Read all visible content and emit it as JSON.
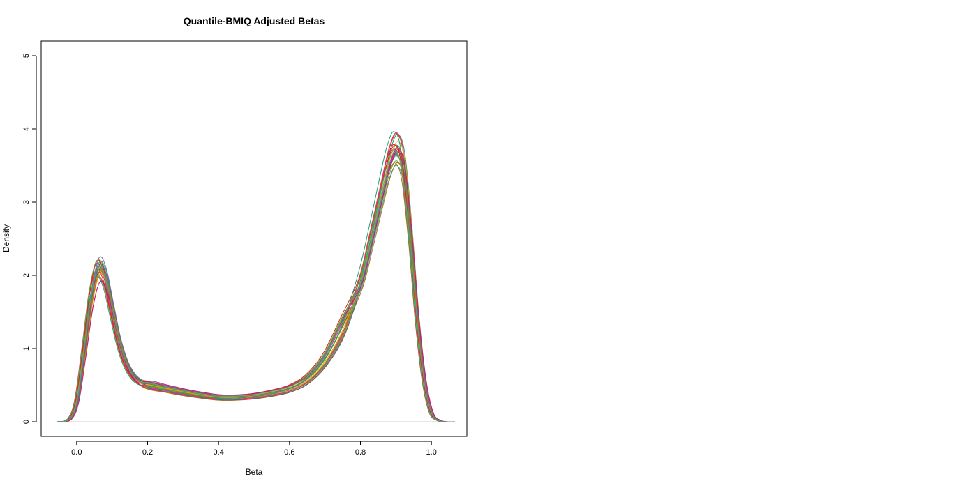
{
  "chart_data": {
    "type": "line",
    "title": "Quantile-BMIQ Adjusted Betas",
    "xlabel": "Beta",
    "ylabel": "Density",
    "xlim": [
      -0.1,
      1.1
    ],
    "ylim": [
      -0.2,
      5.2
    ],
    "x_ticks": [
      0.0,
      0.2,
      0.4,
      0.6,
      0.8,
      1.0
    ],
    "x_tick_labels": [
      "0.0",
      "0.2",
      "0.4",
      "0.6",
      "0.8",
      "1.0"
    ],
    "y_ticks": [
      0,
      1,
      2,
      3,
      4,
      5
    ],
    "y_tick_labels": [
      "0",
      "1",
      "2",
      "3",
      "4",
      "5"
    ],
    "grid": false,
    "baseline": {
      "y": 0,
      "color": "#cfcfcf"
    },
    "colors": [
      "#d95f02",
      "#e7298a",
      "#66a61e",
      "#e6ab02",
      "#a6761d",
      "#1b9e77",
      "#7570b3",
      "#666666",
      "#e41a1c",
      "#4daf4a",
      "#c51b7d",
      "#5e9b8a"
    ],
    "series_template": {
      "x": [
        -0.05,
        -0.02,
        0.0,
        0.02,
        0.04,
        0.06,
        0.08,
        0.1,
        0.12,
        0.14,
        0.16,
        0.18,
        0.2,
        0.25,
        0.3,
        0.35,
        0.4,
        0.45,
        0.5,
        0.55,
        0.6,
        0.65,
        0.7,
        0.75,
        0.8,
        0.83,
        0.86,
        0.88,
        0.9,
        0.92,
        0.94,
        0.96,
        0.98,
        1.0,
        1.02,
        1.04,
        1.06
      ],
      "y": [
        0.0,
        0.04,
        0.3,
        1.0,
        1.75,
        2.15,
        2.0,
        1.55,
        1.1,
        0.8,
        0.63,
        0.55,
        0.5,
        0.45,
        0.4,
        0.36,
        0.33,
        0.33,
        0.35,
        0.39,
        0.45,
        0.58,
        0.85,
        1.3,
        1.95,
        2.55,
        3.2,
        3.6,
        3.8,
        3.55,
        2.6,
        1.4,
        0.55,
        0.12,
        0.02,
        0.0,
        0.0
      ]
    },
    "series_count": 24,
    "peak_low_range": [
      1.9,
      2.25
    ],
    "peak_high_range": [
      3.5,
      3.97
    ]
  }
}
